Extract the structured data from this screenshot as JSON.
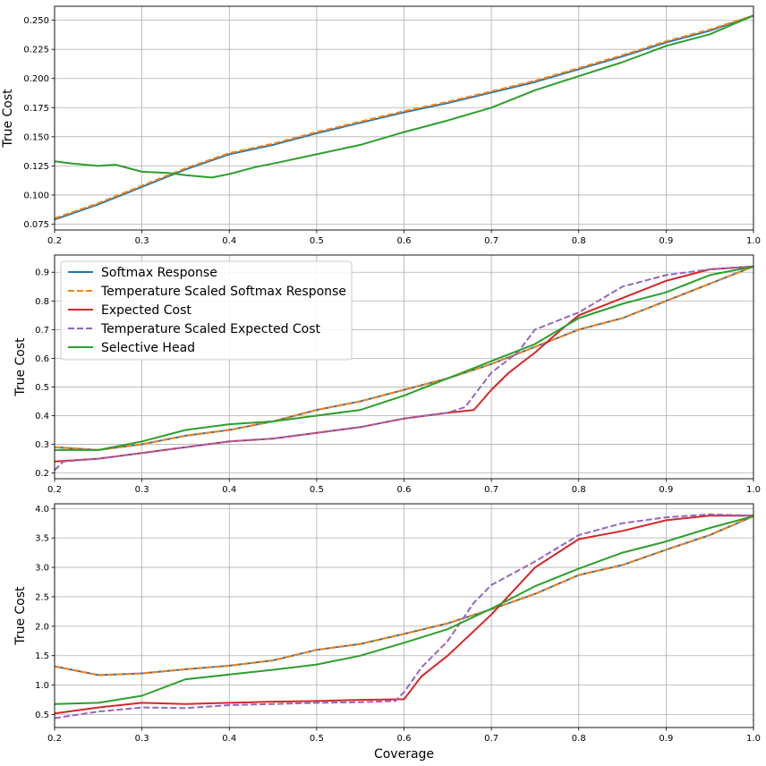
{
  "chart_data": [
    {
      "type": "line",
      "ylabel": "True Cost",
      "xlabel": "",
      "xlim": [
        0.2,
        1.0
      ],
      "ylim": [
        0.07,
        0.262
      ],
      "xticks": [
        "0.2",
        "0.3",
        "0.4",
        "0.5",
        "0.6",
        "0.7",
        "0.8",
        "0.9",
        "1.0"
      ],
      "yticks": [
        "0.075",
        "0.100",
        "0.125",
        "0.150",
        "0.175",
        "0.200",
        "0.225",
        "0.250"
      ],
      "grid": true,
      "series": [
        {
          "name": "Softmax Response",
          "color": "#1f77b4",
          "style": "solid",
          "x": [
            0.2,
            0.25,
            0.3,
            0.35,
            0.4,
            0.45,
            0.5,
            0.55,
            0.6,
            0.65,
            0.7,
            0.75,
            0.8,
            0.85,
            0.9,
            0.95,
            1.0
          ],
          "y": [
            0.079,
            0.092,
            0.107,
            0.122,
            0.135,
            0.143,
            0.153,
            0.162,
            0.171,
            0.179,
            0.188,
            0.197,
            0.208,
            0.219,
            0.231,
            0.241,
            0.254
          ]
        },
        {
          "name": "Temperature Scaled Softmax Response",
          "color": "#ff7f0e",
          "style": "dashed",
          "x": [
            0.2,
            0.25,
            0.3,
            0.35,
            0.4,
            0.45,
            0.5,
            0.55,
            0.6,
            0.65,
            0.7,
            0.75,
            0.8,
            0.85,
            0.9,
            0.95,
            1.0
          ],
          "y": [
            0.08,
            0.093,
            0.108,
            0.123,
            0.136,
            0.144,
            0.154,
            0.163,
            0.172,
            0.18,
            0.189,
            0.198,
            0.209,
            0.22,
            0.232,
            0.242,
            0.254
          ]
        },
        {
          "name": "Selective Head",
          "color": "#2ca02c",
          "style": "solid",
          "x": [
            0.2,
            0.22,
            0.25,
            0.27,
            0.3,
            0.33,
            0.35,
            0.38,
            0.4,
            0.43,
            0.45,
            0.5,
            0.55,
            0.6,
            0.65,
            0.7,
            0.75,
            0.8,
            0.85,
            0.9,
            0.95,
            1.0
          ],
          "y": [
            0.129,
            0.127,
            0.125,
            0.126,
            0.12,
            0.119,
            0.117,
            0.115,
            0.118,
            0.124,
            0.127,
            0.135,
            0.143,
            0.154,
            0.164,
            0.175,
            0.19,
            0.202,
            0.214,
            0.228,
            0.238,
            0.254
          ]
        }
      ]
    },
    {
      "type": "line",
      "ylabel": "True Cost",
      "xlabel": "",
      "xlim": [
        0.2,
        1.0
      ],
      "ylim": [
        0.18,
        0.96
      ],
      "xticks": [
        "0.2",
        "0.3",
        "0.4",
        "0.5",
        "0.6",
        "0.7",
        "0.8",
        "0.9",
        "1.0"
      ],
      "yticks": [
        "0.2",
        "0.3",
        "0.4",
        "0.5",
        "0.6",
        "0.7",
        "0.8",
        "0.9"
      ],
      "grid": true,
      "legend": "upper-left",
      "series": [
        {
          "name": "Softmax Response",
          "color": "#1f77b4",
          "style": "solid",
          "x": [
            0.2,
            0.25,
            0.3,
            0.35,
            0.4,
            0.45,
            0.5,
            0.55,
            0.6,
            0.65,
            0.7,
            0.75,
            0.8,
            0.85,
            0.9,
            0.95,
            1.0
          ],
          "y": [
            0.29,
            0.28,
            0.3,
            0.33,
            0.35,
            0.38,
            0.42,
            0.45,
            0.49,
            0.53,
            0.58,
            0.64,
            0.7,
            0.74,
            0.8,
            0.86,
            0.92
          ]
        },
        {
          "name": "Temperature Scaled Softmax Response",
          "color": "#ff7f0e",
          "style": "dashed",
          "x": [
            0.2,
            0.25,
            0.3,
            0.35,
            0.4,
            0.45,
            0.5,
            0.55,
            0.6,
            0.65,
            0.7,
            0.75,
            0.8,
            0.85,
            0.9,
            0.95,
            1.0
          ],
          "y": [
            0.29,
            0.28,
            0.3,
            0.33,
            0.35,
            0.38,
            0.42,
            0.45,
            0.49,
            0.53,
            0.58,
            0.64,
            0.7,
            0.74,
            0.8,
            0.86,
            0.92
          ]
        },
        {
          "name": "Expected Cost",
          "color": "#d62728",
          "style": "solid",
          "x": [
            0.2,
            0.25,
            0.3,
            0.35,
            0.4,
            0.45,
            0.5,
            0.55,
            0.6,
            0.65,
            0.68,
            0.7,
            0.72,
            0.75,
            0.78,
            0.8,
            0.85,
            0.9,
            0.95,
            1.0
          ],
          "y": [
            0.24,
            0.25,
            0.27,
            0.29,
            0.31,
            0.32,
            0.34,
            0.36,
            0.39,
            0.41,
            0.42,
            0.49,
            0.55,
            0.62,
            0.7,
            0.75,
            0.81,
            0.87,
            0.91,
            0.92
          ]
        },
        {
          "name": "Temperature Scaled Expected Cost",
          "color": "#9467bd",
          "style": "dashed",
          "x": [
            0.2,
            0.21,
            0.25,
            0.3,
            0.35,
            0.4,
            0.45,
            0.5,
            0.55,
            0.6,
            0.65,
            0.67,
            0.7,
            0.73,
            0.75,
            0.8,
            0.85,
            0.9,
            0.95,
            1.0
          ],
          "y": [
            0.21,
            0.24,
            0.25,
            0.27,
            0.29,
            0.31,
            0.32,
            0.34,
            0.36,
            0.39,
            0.41,
            0.43,
            0.55,
            0.62,
            0.7,
            0.76,
            0.85,
            0.89,
            0.91,
            0.92
          ]
        },
        {
          "name": "Selective Head",
          "color": "#2ca02c",
          "style": "solid",
          "x": [
            0.2,
            0.25,
            0.3,
            0.35,
            0.4,
            0.45,
            0.5,
            0.55,
            0.6,
            0.65,
            0.7,
            0.75,
            0.8,
            0.85,
            0.9,
            0.95,
            1.0
          ],
          "y": [
            0.28,
            0.28,
            0.31,
            0.35,
            0.37,
            0.38,
            0.4,
            0.42,
            0.47,
            0.53,
            0.59,
            0.65,
            0.74,
            0.79,
            0.83,
            0.89,
            0.92
          ]
        }
      ]
    },
    {
      "type": "line",
      "ylabel": "True Cost",
      "xlabel": "Coverage",
      "xlim": [
        0.2,
        1.0
      ],
      "ylim": [
        0.28,
        4.08
      ],
      "xticks": [
        "0.2",
        "0.3",
        "0.4",
        "0.5",
        "0.6",
        "0.7",
        "0.8",
        "0.9",
        "1.0"
      ],
      "yticks": [
        "0.5",
        "1.0",
        "1.5",
        "2.0",
        "2.5",
        "3.0",
        "3.5",
        "4.0"
      ],
      "grid": true,
      "series": [
        {
          "name": "Softmax Response",
          "color": "#1f77b4",
          "style": "solid",
          "x": [
            0.2,
            0.25,
            0.3,
            0.35,
            0.4,
            0.45,
            0.5,
            0.55,
            0.6,
            0.65,
            0.7,
            0.75,
            0.8,
            0.85,
            0.9,
            0.95,
            1.0
          ],
          "y": [
            1.32,
            1.17,
            1.2,
            1.27,
            1.33,
            1.42,
            1.6,
            1.7,
            1.87,
            2.05,
            2.29,
            2.55,
            2.87,
            3.04,
            3.3,
            3.55,
            3.87
          ]
        },
        {
          "name": "Temperature Scaled Softmax Response",
          "color": "#ff7f0e",
          "style": "dashed",
          "x": [
            0.2,
            0.25,
            0.3,
            0.35,
            0.4,
            0.45,
            0.5,
            0.55,
            0.6,
            0.65,
            0.7,
            0.75,
            0.8,
            0.85,
            0.9,
            0.95,
            1.0
          ],
          "y": [
            1.32,
            1.17,
            1.2,
            1.27,
            1.33,
            1.42,
            1.6,
            1.7,
            1.87,
            2.05,
            2.29,
            2.55,
            2.87,
            3.04,
            3.3,
            3.55,
            3.87
          ]
        },
        {
          "name": "Expected Cost",
          "color": "#d62728",
          "style": "solid",
          "x": [
            0.2,
            0.25,
            0.3,
            0.35,
            0.4,
            0.45,
            0.5,
            0.55,
            0.6,
            0.62,
            0.65,
            0.7,
            0.75,
            0.8,
            0.85,
            0.9,
            0.95,
            1.0
          ],
          "y": [
            0.52,
            0.62,
            0.7,
            0.68,
            0.7,
            0.72,
            0.73,
            0.75,
            0.76,
            1.15,
            1.5,
            2.2,
            3.0,
            3.48,
            3.62,
            3.8,
            3.88,
            3.88
          ]
        },
        {
          "name": "Temperature Scaled Expected Cost",
          "color": "#9467bd",
          "style": "dashed",
          "x": [
            0.2,
            0.25,
            0.3,
            0.35,
            0.4,
            0.45,
            0.5,
            0.55,
            0.59,
            0.6,
            0.62,
            0.65,
            0.68,
            0.7,
            0.75,
            0.8,
            0.85,
            0.9,
            0.95,
            1.0
          ],
          "y": [
            0.44,
            0.55,
            0.62,
            0.61,
            0.66,
            0.68,
            0.7,
            0.71,
            0.73,
            0.88,
            1.3,
            1.75,
            2.4,
            2.7,
            3.1,
            3.55,
            3.75,
            3.85,
            3.9,
            3.88
          ]
        },
        {
          "name": "Selective Head",
          "color": "#2ca02c",
          "style": "solid",
          "x": [
            0.2,
            0.25,
            0.3,
            0.35,
            0.4,
            0.45,
            0.5,
            0.55,
            0.6,
            0.65,
            0.7,
            0.75,
            0.8,
            0.85,
            0.9,
            0.95,
            1.0
          ],
          "y": [
            0.68,
            0.7,
            0.82,
            1.1,
            1.18,
            1.26,
            1.35,
            1.5,
            1.72,
            1.95,
            2.3,
            2.68,
            2.98,
            3.25,
            3.44,
            3.67,
            3.87
          ]
        }
      ]
    }
  ]
}
